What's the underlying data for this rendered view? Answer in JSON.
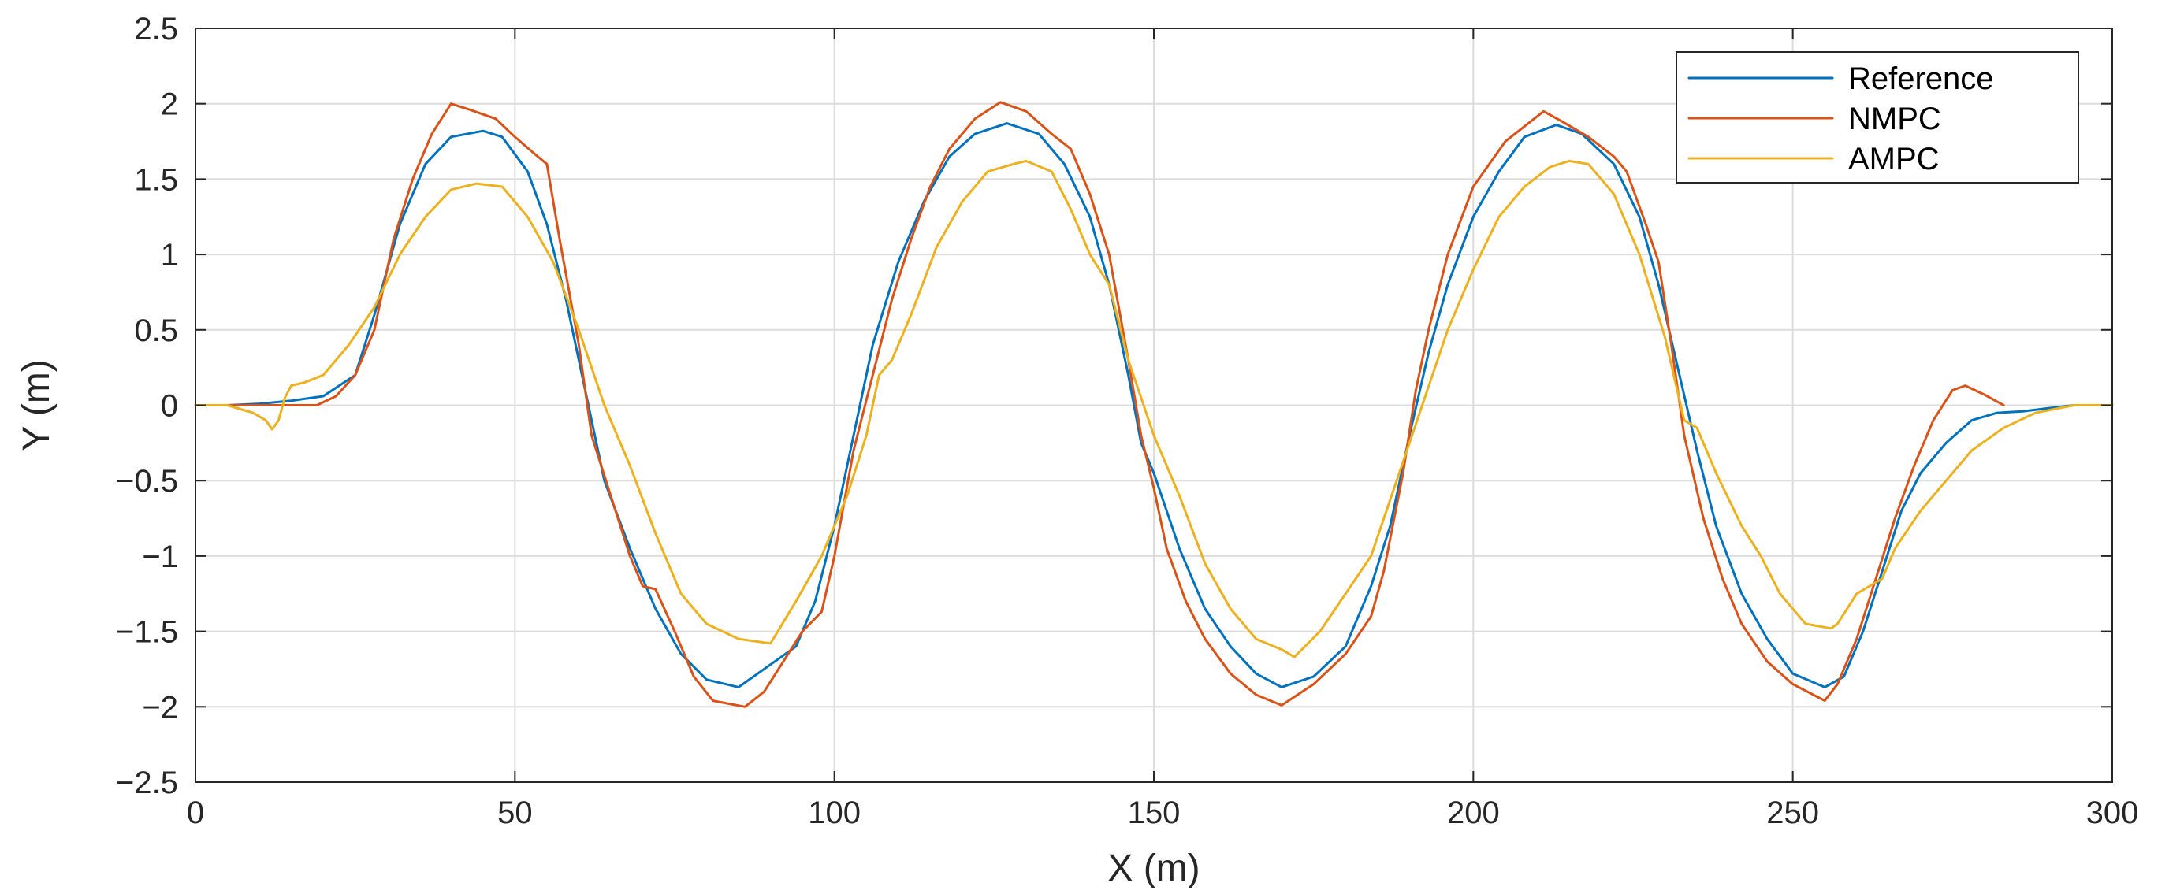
{
  "chart_data": {
    "type": "line",
    "title": "",
    "xlabel": "X (m)",
    "ylabel": "Y (m)",
    "xlim": [
      0,
      300
    ],
    "ylim": [
      -2.5,
      2.5
    ],
    "xticks": [
      0,
      50,
      100,
      150,
      200,
      250,
      300
    ],
    "yticks": [
      -2.5,
      -2,
      -1.5,
      -1,
      -0.5,
      0,
      0.5,
      1,
      1.5,
      2,
      2.5
    ],
    "xtick_labels": [
      "0",
      "50",
      "100",
      "150",
      "200",
      "250",
      "300"
    ],
    "ytick_labels": [
      "−2.5",
      "−2",
      "−1.5",
      "−1",
      "−0.5",
      "0",
      "0.5",
      "1",
      "1.5",
      "2",
      "2.5"
    ],
    "grid": true,
    "legend_position": "top-right",
    "series": [
      {
        "name": "Reference",
        "color": "#0072BD",
        "points": [
          [
            0,
            0
          ],
          [
            5,
            0
          ],
          [
            10,
            0.01
          ],
          [
            15,
            0.03
          ],
          [
            20,
            0.06
          ],
          [
            25,
            0.2
          ],
          [
            28,
            0.6
          ],
          [
            32,
            1.2
          ],
          [
            36,
            1.6
          ],
          [
            40,
            1.78
          ],
          [
            45,
            1.82
          ],
          [
            48,
            1.78
          ],
          [
            52,
            1.55
          ],
          [
            55,
            1.2
          ],
          [
            58,
            0.7
          ],
          [
            61,
            0.1
          ],
          [
            64,
            -0.5
          ],
          [
            68,
            -0.95
          ],
          [
            72,
            -1.35
          ],
          [
            76,
            -1.65
          ],
          [
            80,
            -1.82
          ],
          [
            85,
            -1.87
          ],
          [
            90,
            -1.72
          ],
          [
            94,
            -1.6
          ],
          [
            97,
            -1.3
          ],
          [
            100,
            -0.8
          ],
          [
            103,
            -0.2
          ],
          [
            106,
            0.4
          ],
          [
            110,
            0.95
          ],
          [
            114,
            1.35
          ],
          [
            118,
            1.65
          ],
          [
            122,
            1.8
          ],
          [
            127,
            1.87
          ],
          [
            132,
            1.8
          ],
          [
            136,
            1.6
          ],
          [
            140,
            1.25
          ],
          [
            143,
            0.8
          ],
          [
            146,
            0.2
          ],
          [
            148,
            -0.25
          ],
          [
            150,
            -0.45
          ],
          [
            154,
            -0.95
          ],
          [
            158,
            -1.35
          ],
          [
            162,
            -1.6
          ],
          [
            166,
            -1.78
          ],
          [
            170,
            -1.87
          ],
          [
            175,
            -1.8
          ],
          [
            180,
            -1.6
          ],
          [
            184,
            -1.2
          ],
          [
            187,
            -0.8
          ],
          [
            190,
            -0.2
          ],
          [
            193,
            0.35
          ],
          [
            196,
            0.8
          ],
          [
            200,
            1.25
          ],
          [
            204,
            1.55
          ],
          [
            208,
            1.78
          ],
          [
            213,
            1.86
          ],
          [
            217,
            1.8
          ],
          [
            222,
            1.6
          ],
          [
            226,
            1.25
          ],
          [
            229,
            0.8
          ],
          [
            232,
            0.25
          ],
          [
            235,
            -0.3
          ],
          [
            238,
            -0.8
          ],
          [
            242,
            -1.25
          ],
          [
            246,
            -1.55
          ],
          [
            250,
            -1.78
          ],
          [
            255,
            -1.87
          ],
          [
            258,
            -1.8
          ],
          [
            261,
            -1.5
          ],
          [
            264,
            -1.1
          ],
          [
            267,
            -0.7
          ],
          [
            270,
            -0.45
          ],
          [
            274,
            -0.25
          ],
          [
            278,
            -0.1
          ],
          [
            282,
            -0.05
          ],
          [
            286,
            -0.04
          ],
          [
            290,
            -0.02
          ],
          [
            294,
            0
          ],
          [
            300,
            0
          ]
        ]
      },
      {
        "name": "NMPC",
        "color": "#D95319",
        "points": [
          [
            0,
            0
          ],
          [
            5,
            0
          ],
          [
            10,
            0
          ],
          [
            15,
            0
          ],
          [
            19,
            0
          ],
          [
            22,
            0.06
          ],
          [
            25,
            0.2
          ],
          [
            28,
            0.5
          ],
          [
            31,
            1.1
          ],
          [
            34,
            1.5
          ],
          [
            37,
            1.8
          ],
          [
            40,
            2.0
          ],
          [
            43,
            1.96
          ],
          [
            47,
            1.9
          ],
          [
            50,
            1.78
          ],
          [
            53,
            1.67
          ],
          [
            55,
            1.6
          ],
          [
            57,
            1.1
          ],
          [
            60,
            0.4
          ],
          [
            62,
            -0.2
          ],
          [
            65,
            -0.6
          ],
          [
            68,
            -1.0
          ],
          [
            70,
            -1.2
          ],
          [
            72,
            -1.22
          ],
          [
            75,
            -1.5
          ],
          [
            78,
            -1.8
          ],
          [
            81,
            -1.96
          ],
          [
            86,
            -2.0
          ],
          [
            89,
            -1.9
          ],
          [
            92,
            -1.7
          ],
          [
            95,
            -1.5
          ],
          [
            98,
            -1.37
          ],
          [
            100,
            -1.0
          ],
          [
            103,
            -0.3
          ],
          [
            106,
            0.2
          ],
          [
            109,
            0.7
          ],
          [
            112,
            1.1
          ],
          [
            115,
            1.45
          ],
          [
            118,
            1.7
          ],
          [
            122,
            1.9
          ],
          [
            126,
            2.01
          ],
          [
            130,
            1.95
          ],
          [
            134,
            1.8
          ],
          [
            137,
            1.7
          ],
          [
            140,
            1.4
          ],
          [
            143,
            1.0
          ],
          [
            146,
            0.3
          ],
          [
            148,
            -0.2
          ],
          [
            150,
            -0.55
          ],
          [
            152,
            -0.95
          ],
          [
            155,
            -1.3
          ],
          [
            158,
            -1.55
          ],
          [
            162,
            -1.78
          ],
          [
            166,
            -1.92
          ],
          [
            170,
            -1.99
          ],
          [
            175,
            -1.85
          ],
          [
            180,
            -1.65
          ],
          [
            184,
            -1.4
          ],
          [
            186,
            -1.1
          ],
          [
            189,
            -0.45
          ],
          [
            191,
            0.1
          ],
          [
            193,
            0.5
          ],
          [
            196,
            1.0
          ],
          [
            200,
            1.45
          ],
          [
            205,
            1.75
          ],
          [
            211,
            1.95
          ],
          [
            214,
            1.88
          ],
          [
            218,
            1.78
          ],
          [
            222,
            1.65
          ],
          [
            224,
            1.55
          ],
          [
            227,
            1.2
          ],
          [
            229,
            0.95
          ],
          [
            231,
            0.4
          ],
          [
            233,
            -0.2
          ],
          [
            236,
            -0.75
          ],
          [
            239,
            -1.15
          ],
          [
            242,
            -1.45
          ],
          [
            246,
            -1.7
          ],
          [
            250,
            -1.85
          ],
          [
            255,
            -1.96
          ],
          [
            257,
            -1.85
          ],
          [
            260,
            -1.55
          ],
          [
            263,
            -1.15
          ],
          [
            266,
            -0.75
          ],
          [
            269,
            -0.4
          ],
          [
            272,
            -0.1
          ],
          [
            275,
            0.1
          ],
          [
            277,
            0.13
          ],
          [
            280,
            0.07
          ],
          [
            283,
            0.0
          ]
        ]
      },
      {
        "name": "AMPC",
        "color": "#EDB120",
        "points": [
          [
            0,
            0
          ],
          [
            5,
            0
          ],
          [
            9,
            -0.05
          ],
          [
            11,
            -0.1
          ],
          [
            12,
            -0.16
          ],
          [
            13,
            -0.1
          ],
          [
            14,
            0.05
          ],
          [
            15,
            0.13
          ],
          [
            17,
            0.15
          ],
          [
            20,
            0.2
          ],
          [
            24,
            0.4
          ],
          [
            28,
            0.65
          ],
          [
            32,
            1.0
          ],
          [
            36,
            1.25
          ],
          [
            40,
            1.43
          ],
          [
            44,
            1.47
          ],
          [
            48,
            1.45
          ],
          [
            52,
            1.25
          ],
          [
            56,
            0.95
          ],
          [
            60,
            0.5
          ],
          [
            64,
            0.0
          ],
          [
            68,
            -0.4
          ],
          [
            72,
            -0.85
          ],
          [
            76,
            -1.25
          ],
          [
            80,
            -1.45
          ],
          [
            85,
            -1.55
          ],
          [
            90,
            -1.58
          ],
          [
            94,
            -1.3
          ],
          [
            98,
            -1.0
          ],
          [
            102,
            -0.6
          ],
          [
            105,
            -0.2
          ],
          [
            107,
            0.2
          ],
          [
            109,
            0.3
          ],
          [
            112,
            0.6
          ],
          [
            116,
            1.05
          ],
          [
            120,
            1.35
          ],
          [
            124,
            1.55
          ],
          [
            128,
            1.6
          ],
          [
            130,
            1.62
          ],
          [
            134,
            1.55
          ],
          [
            137,
            1.3
          ],
          [
            140,
            1.0
          ],
          [
            143,
            0.8
          ],
          [
            146,
            0.3
          ],
          [
            150,
            -0.2
          ],
          [
            154,
            -0.6
          ],
          [
            158,
            -1.05
          ],
          [
            162,
            -1.35
          ],
          [
            166,
            -1.55
          ],
          [
            170,
            -1.62
          ],
          [
            172,
            -1.67
          ],
          [
            176,
            -1.5
          ],
          [
            180,
            -1.25
          ],
          [
            184,
            -1.0
          ],
          [
            188,
            -0.5
          ],
          [
            192,
            0.0
          ],
          [
            196,
            0.5
          ],
          [
            200,
            0.9
          ],
          [
            204,
            1.25
          ],
          [
            208,
            1.45
          ],
          [
            212,
            1.58
          ],
          [
            215,
            1.62
          ],
          [
            218,
            1.6
          ],
          [
            222,
            1.4
          ],
          [
            226,
            1.0
          ],
          [
            230,
            0.45
          ],
          [
            233,
            -0.1
          ],
          [
            235,
            -0.15
          ],
          [
            238,
            -0.45
          ],
          [
            242,
            -0.8
          ],
          [
            245,
            -1.0
          ],
          [
            248,
            -1.25
          ],
          [
            252,
            -1.45
          ],
          [
            256,
            -1.48
          ],
          [
            257,
            -1.45
          ],
          [
            260,
            -1.25
          ],
          [
            264,
            -1.15
          ],
          [
            266,
            -0.95
          ],
          [
            270,
            -0.7
          ],
          [
            274,
            -0.5
          ],
          [
            278,
            -0.3
          ],
          [
            283,
            -0.15
          ],
          [
            288,
            -0.05
          ],
          [
            294,
            0
          ],
          [
            300,
            0
          ]
        ]
      }
    ]
  }
}
